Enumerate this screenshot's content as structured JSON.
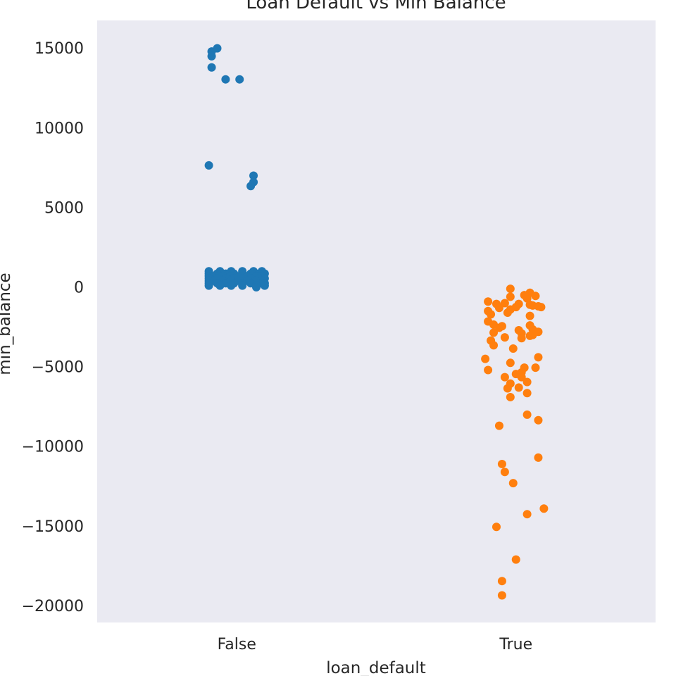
{
  "chart_data": {
    "type": "scatter",
    "kind": "strip",
    "title": "Loan Default vs Min Balance",
    "xlabel": "loan_default",
    "ylabel": "min_balance",
    "categories": [
      "False",
      "True"
    ],
    "ylim": [
      -21000,
      16800
    ],
    "yticks": [
      15000,
      10000,
      5000,
      0,
      -5000,
      -10000,
      -15000,
      -20000
    ],
    "ytick_labels": [
      "15000",
      "10000",
      "5000",
      "0",
      "−5000",
      "−10000",
      "−15000",
      "−20000"
    ],
    "grid": false,
    "background_color": "#eaeaf2",
    "series": [
      {
        "category": "False",
        "color": "#1f77b4",
        "points": [
          [
            -0.09,
            14850
          ],
          [
            -0.07,
            15050
          ],
          [
            -0.09,
            14550
          ],
          [
            -0.09,
            13850
          ],
          [
            -0.04,
            13100
          ],
          [
            0.01,
            13100
          ],
          [
            -0.1,
            7700
          ],
          [
            0.06,
            7050
          ],
          [
            0.06,
            6650
          ],
          [
            0.05,
            6400
          ],
          [
            -0.1,
            1050
          ],
          [
            -0.06,
            1050
          ],
          [
            -0.02,
            1050
          ],
          [
            0.02,
            1050
          ],
          [
            0.06,
            1050
          ],
          [
            0.09,
            1050
          ],
          [
            -0.1,
            900
          ],
          [
            -0.07,
            900
          ],
          [
            -0.04,
            900
          ],
          [
            -0.01,
            900
          ],
          [
            0.02,
            900
          ],
          [
            0.05,
            900
          ],
          [
            0.08,
            900
          ],
          [
            0.1,
            900
          ],
          [
            -0.1,
            750
          ],
          [
            -0.08,
            750
          ],
          [
            -0.05,
            750
          ],
          [
            -0.02,
            750
          ],
          [
            0.01,
            750
          ],
          [
            0.04,
            750
          ],
          [
            0.07,
            750
          ],
          [
            0.09,
            750
          ],
          [
            -0.1,
            600
          ],
          [
            -0.07,
            600
          ],
          [
            -0.04,
            600
          ],
          [
            -0.01,
            600
          ],
          [
            0.02,
            600
          ],
          [
            0.05,
            600
          ],
          [
            0.08,
            600
          ],
          [
            0.1,
            600
          ],
          [
            -0.1,
            450
          ],
          [
            -0.08,
            450
          ],
          [
            -0.05,
            450
          ],
          [
            -0.02,
            450
          ],
          [
            0.01,
            450
          ],
          [
            0.04,
            450
          ],
          [
            0.07,
            450
          ],
          [
            0.09,
            450
          ],
          [
            -0.1,
            300
          ],
          [
            -0.07,
            300
          ],
          [
            -0.04,
            300
          ],
          [
            -0.01,
            300
          ],
          [
            0.02,
            300
          ],
          [
            0.05,
            300
          ],
          [
            0.08,
            300
          ],
          [
            0.1,
            300
          ],
          [
            -0.1,
            150
          ],
          [
            -0.06,
            150
          ],
          [
            -0.02,
            150
          ],
          [
            0.02,
            150
          ],
          [
            0.07,
            150
          ],
          [
            0.1,
            150
          ],
          [
            0.07,
            50
          ]
        ]
      },
      {
        "category": "True",
        "color": "#ff7f0e",
        "points": [
          [
            -0.02,
            -50
          ],
          [
            0.05,
            -300
          ],
          [
            0.03,
            -450
          ],
          [
            0.07,
            -500
          ],
          [
            -0.02,
            -550
          ],
          [
            0.04,
            -650
          ],
          [
            -0.1,
            -850
          ],
          [
            -0.07,
            -1000
          ],
          [
            -0.04,
            -950
          ],
          [
            0.01,
            -1000
          ],
          [
            0.05,
            -1050
          ],
          [
            0.06,
            -1100
          ],
          [
            0.08,
            -1150
          ],
          [
            0.09,
            -1200
          ],
          [
            -0.06,
            -1250
          ],
          [
            0.0,
            -1200
          ],
          [
            -0.02,
            -1350
          ],
          [
            -0.1,
            -1450
          ],
          [
            -0.03,
            -1550
          ],
          [
            -0.09,
            -1650
          ],
          [
            0.05,
            -1750
          ],
          [
            -0.1,
            -2100
          ],
          [
            -0.08,
            -2300
          ],
          [
            -0.06,
            -2500
          ],
          [
            -0.05,
            -2400
          ],
          [
            0.05,
            -2350
          ],
          [
            0.06,
            -2600
          ],
          [
            0.01,
            -2650
          ],
          [
            0.08,
            -2750
          ],
          [
            -0.08,
            -2800
          ],
          [
            0.02,
            -2850
          ],
          [
            0.06,
            -2950
          ],
          [
            0.05,
            -3000
          ],
          [
            -0.04,
            -3100
          ],
          [
            0.02,
            -3150
          ],
          [
            -0.09,
            -3300
          ],
          [
            -0.08,
            -3600
          ],
          [
            -0.01,
            -3800
          ],
          [
            0.08,
            -4350
          ],
          [
            -0.11,
            -4450
          ],
          [
            -0.02,
            -4700
          ],
          [
            0.03,
            -5000
          ],
          [
            0.07,
            -5000
          ],
          [
            -0.1,
            -5150
          ],
          [
            0.02,
            -5300
          ],
          [
            0.0,
            -5400
          ],
          [
            -0.04,
            -5600
          ],
          [
            0.02,
            -5600
          ],
          [
            0.04,
            -5900
          ],
          [
            -0.02,
            -6000
          ],
          [
            0.01,
            -6250
          ],
          [
            -0.03,
            -6300
          ],
          [
            0.04,
            -6600
          ],
          [
            -0.02,
            -6850
          ],
          [
            0.04,
            -7950
          ],
          [
            0.08,
            -8300
          ],
          [
            -0.06,
            -8650
          ],
          [
            0.08,
            -10650
          ],
          [
            -0.05,
            -11050
          ],
          [
            -0.04,
            -11550
          ],
          [
            -0.01,
            -12250
          ],
          [
            0.1,
            -13850
          ],
          [
            0.04,
            -14200
          ],
          [
            -0.07,
            -15000
          ],
          [
            0.0,
            -17050
          ],
          [
            -0.05,
            -18400
          ],
          [
            -0.05,
            -19300
          ]
        ]
      }
    ]
  }
}
